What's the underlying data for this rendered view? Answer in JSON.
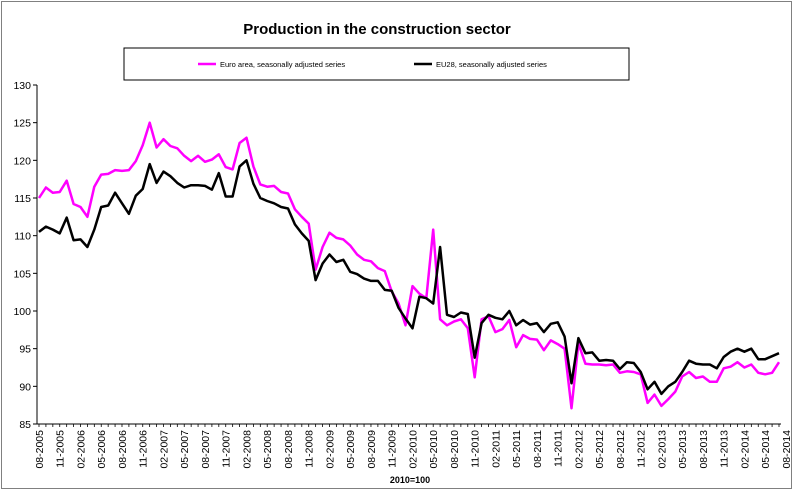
{
  "chart_data": {
    "type": "line",
    "title": "Production in the construction sector",
    "xlabel": "2010=100",
    "ylabel": "",
    "ylim": [
      85,
      130
    ],
    "yticks": [
      85,
      90,
      95,
      100,
      105,
      110,
      115,
      120,
      125,
      130
    ],
    "grid": false,
    "legend_position": "top",
    "x_tick_labels": [
      "08-2005",
      "11-2005",
      "02-2006",
      "05-2006",
      "08-2006",
      "11-2006",
      "02-2007",
      "05-2007",
      "08-2007",
      "11-2007",
      "02-2008",
      "05-2008",
      "08-2008",
      "11-2008",
      "02-2009",
      "05-2009",
      "08-2009",
      "11-2009",
      "02-2010",
      "05-2010",
      "08-2010",
      "11-2010",
      "02-2011",
      "05-2011",
      "08-2011",
      "11-2011",
      "02-2012",
      "05-2012",
      "08-2012",
      "11-2012",
      "02-2013",
      "05-2013",
      "08-2013",
      "11-2013",
      "02-2014",
      "05-2014",
      "08-2014"
    ],
    "series": [
      {
        "name": "Euro area, seasonally adjusted series",
        "color": "#ff00ff",
        "values": [
          115.0,
          116.4,
          115.7,
          115.8,
          117.3,
          114.2,
          113.8,
          112.5,
          116.5,
          118.1,
          118.2,
          118.7,
          118.6,
          118.7,
          119.9,
          122.0,
          125.0,
          121.7,
          122.8,
          121.9,
          121.6,
          120.6,
          119.9,
          120.6,
          119.8,
          120.1,
          120.8,
          119.1,
          118.8,
          122.3,
          123.0,
          119.2,
          116.8,
          116.5,
          116.6,
          115.8,
          115.6,
          113.5,
          112.5,
          111.6,
          105.5,
          108.5,
          110.4,
          109.7,
          109.5,
          108.7,
          107.5,
          106.8,
          106.6,
          105.7,
          105.3,
          102.6,
          101.0,
          98.1,
          103.3,
          102.3,
          101.7,
          110.8,
          98.9,
          98.1,
          98.6,
          98.9,
          97.7,
          91.2,
          98.9,
          99.3,
          97.2,
          97.6,
          98.8,
          95.2,
          96.8,
          96.3,
          96.2,
          94.8,
          96.1,
          95.6,
          95.0,
          87.1,
          95.7,
          93.0,
          92.9,
          92.9,
          92.8,
          92.9,
          91.8,
          92.0,
          91.9,
          91.6,
          87.8,
          88.9,
          87.4,
          88.3,
          89.3,
          91.3,
          91.9,
          91.1,
          91.3,
          90.6,
          90.6,
          92.4,
          92.6,
          93.2,
          92.5,
          92.9,
          91.8,
          91.6,
          91.8,
          93.2
        ]
      },
      {
        "name": "EU28, seasonally adjusted series",
        "color": "#000000",
        "values": [
          110.5,
          111.2,
          110.8,
          110.3,
          112.4,
          109.4,
          109.5,
          108.5,
          110.8,
          113.8,
          114.0,
          115.7,
          114.3,
          112.9,
          115.3,
          116.2,
          119.5,
          117.0,
          118.5,
          117.9,
          117.0,
          116.4,
          116.7,
          116.7,
          116.6,
          116.1,
          118.3,
          115.2,
          115.2,
          119.2,
          120.0,
          116.9,
          115.0,
          114.6,
          114.3,
          113.8,
          113.6,
          111.5,
          110.3,
          109.3,
          104.1,
          106.3,
          107.5,
          106.5,
          106.8,
          105.2,
          104.9,
          104.3,
          104.0,
          104.0,
          102.8,
          102.7,
          100.4,
          99.0,
          97.7,
          101.9,
          101.7,
          101.0,
          108.5,
          99.5,
          99.2,
          99.8,
          99.6,
          93.8,
          98.4,
          99.5,
          99.1,
          98.9,
          100.0,
          98.1,
          98.8,
          98.2,
          98.4,
          97.2,
          98.3,
          98.5,
          96.6,
          90.4,
          96.4,
          94.4,
          94.5,
          93.4,
          93.5,
          93.4,
          92.3,
          93.2,
          93.1,
          91.9,
          89.6,
          90.6,
          89.0,
          90.0,
          90.6,
          91.9,
          93.4,
          93.0,
          92.9,
          92.9,
          92.4,
          93.9,
          94.6,
          95.0,
          94.6,
          95.0,
          93.6,
          93.6,
          94.0,
          94.4
        ]
      }
    ]
  }
}
